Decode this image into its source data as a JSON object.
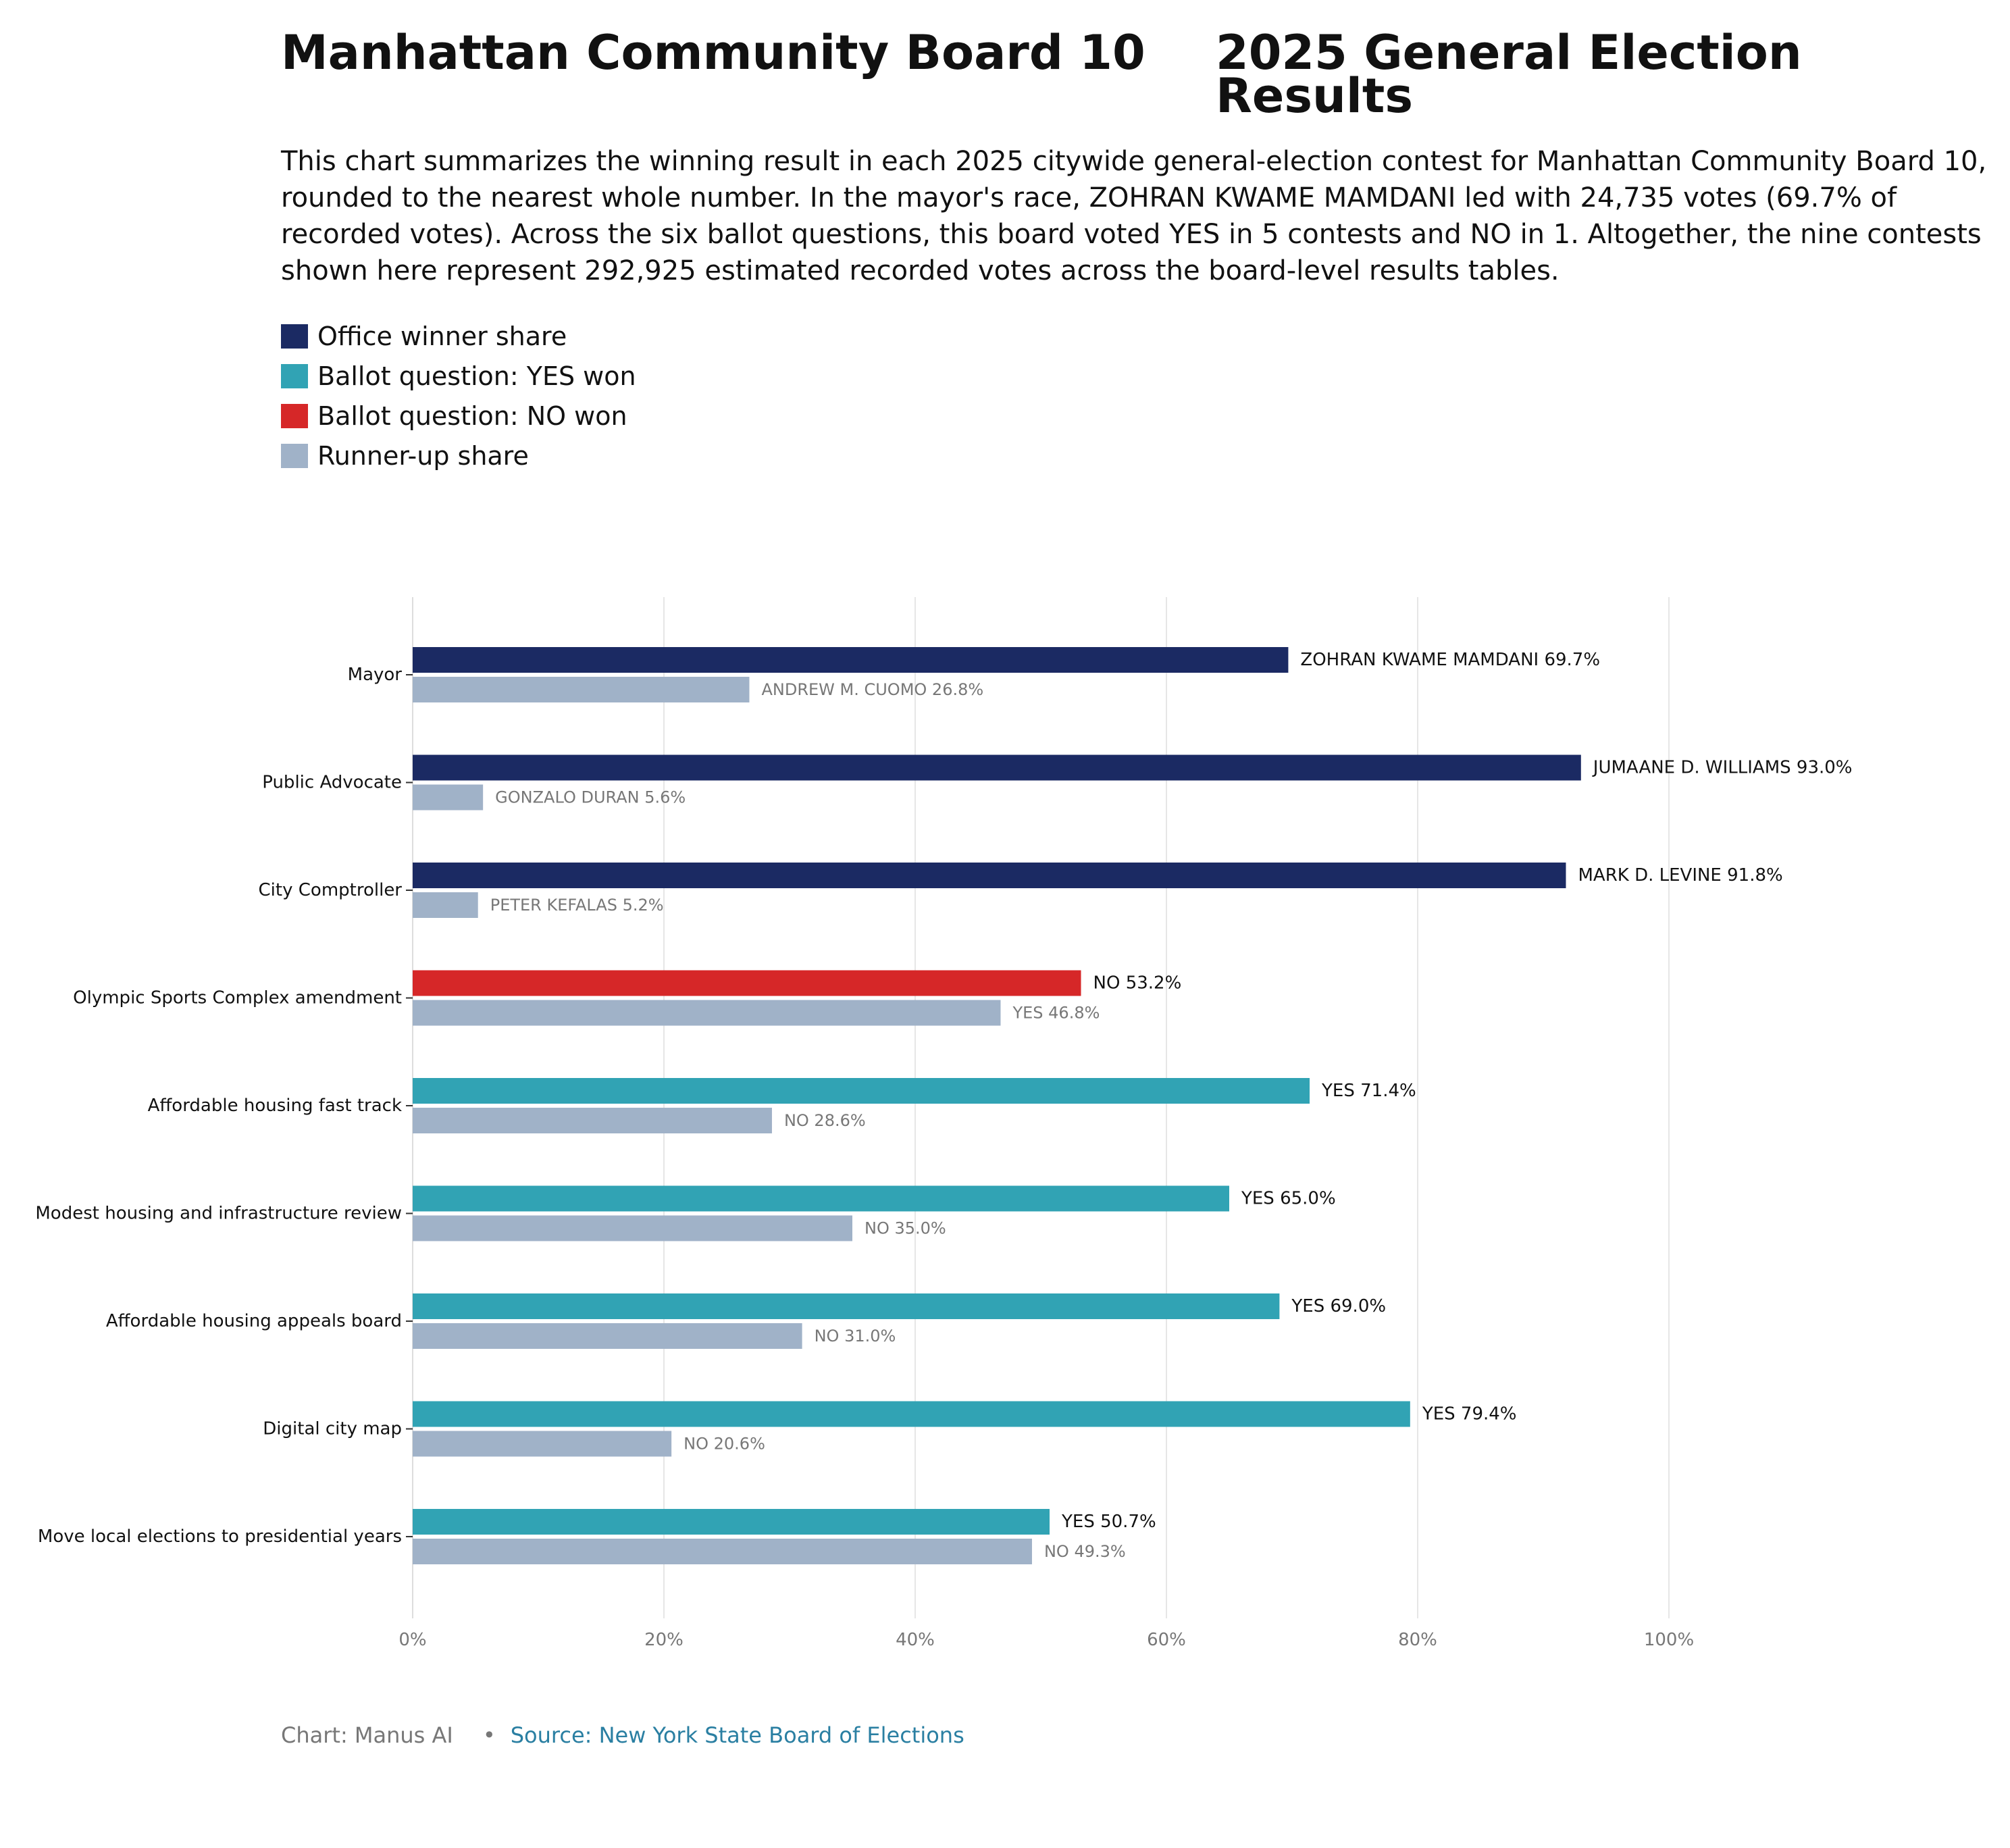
{
  "title_left": "Manhattan Community Board 10",
  "title_right": "2025 General Election Results",
  "subtitle": "This chart summarizes the winning result in each 2025 citywide general-election contest for Manhattan Community Board 10, rounded to the nearest whole number. In the mayor's race, ZOHRAN KWAME MAMDANI led with 24,735 votes (69.7% of recorded votes). Across the six ballot questions, this board voted YES in 5 contests and NO in 1. Altogether, the nine contests shown here represent 292,925 estimated recorded votes across the board-level results tables.",
  "legend": [
    {
      "label": "Office winner share",
      "color": "#1b2a63"
    },
    {
      "label": "Ballot question: YES won",
      "color": "#31a3b4"
    },
    {
      "label": "Ballot question: NO won",
      "color": "#d62728"
    },
    {
      "label": "Runner-up share",
      "color": "#a0b2c8"
    }
  ],
  "footer": {
    "credit": "Chart: Manus AI",
    "separator": "•",
    "source": "Source: New York State Board of Elections"
  },
  "chart_data": {
    "type": "bar",
    "orientation": "horizontal",
    "xlim": [
      0,
      100
    ],
    "xticks": [
      "0%",
      "20%",
      "40%",
      "60%",
      "80%",
      "100%"
    ],
    "grid": "vertical",
    "colors": {
      "office": "#1b2a63",
      "yes": "#31a3b4",
      "no": "#d62728",
      "runner": "#a0b2c8"
    },
    "contests": [
      {
        "category": "Mayor",
        "winner_kind": "office",
        "winner_value": 69.7,
        "winner_label": "ZOHRAN KWAME MAMDANI 69.7%",
        "runner_value": 26.8,
        "runner_label": "ANDREW M. CUOMO 26.8%"
      },
      {
        "category": "Public Advocate",
        "winner_kind": "office",
        "winner_value": 93.0,
        "winner_label": "JUMAANE D. WILLIAMS 93.0%",
        "runner_value": 5.6,
        "runner_label": "GONZALO DURAN 5.6%"
      },
      {
        "category": "City Comptroller",
        "winner_kind": "office",
        "winner_value": 91.8,
        "winner_label": "MARK D. LEVINE 91.8%",
        "runner_value": 5.2,
        "runner_label": "PETER KEFALAS 5.2%"
      },
      {
        "category": "Olympic Sports Complex amendment",
        "winner_kind": "no",
        "winner_value": 53.2,
        "winner_label": "NO 53.2%",
        "runner_value": 46.8,
        "runner_label": "YES 46.8%"
      },
      {
        "category": "Affordable housing fast track",
        "winner_kind": "yes",
        "winner_value": 71.4,
        "winner_label": "YES 71.4%",
        "runner_value": 28.6,
        "runner_label": "NO 28.6%"
      },
      {
        "category": "Modest housing and infrastructure review",
        "winner_kind": "yes",
        "winner_value": 65.0,
        "winner_label": "YES 65.0%",
        "runner_value": 35.0,
        "runner_label": "NO 35.0%"
      },
      {
        "category": "Affordable housing appeals board",
        "winner_kind": "yes",
        "winner_value": 69.0,
        "winner_label": "YES 69.0%",
        "runner_value": 31.0,
        "runner_label": "NO 31.0%"
      },
      {
        "category": "Digital city map",
        "winner_kind": "yes",
        "winner_value": 79.4,
        "winner_label": "YES 79.4%",
        "runner_value": 20.6,
        "runner_label": "NO 20.6%"
      },
      {
        "category": "Move local elections to presidential years",
        "winner_kind": "yes",
        "winner_value": 50.7,
        "winner_label": "YES 50.7%",
        "runner_value": 49.3,
        "runner_label": "NO 49.3%"
      }
    ]
  }
}
